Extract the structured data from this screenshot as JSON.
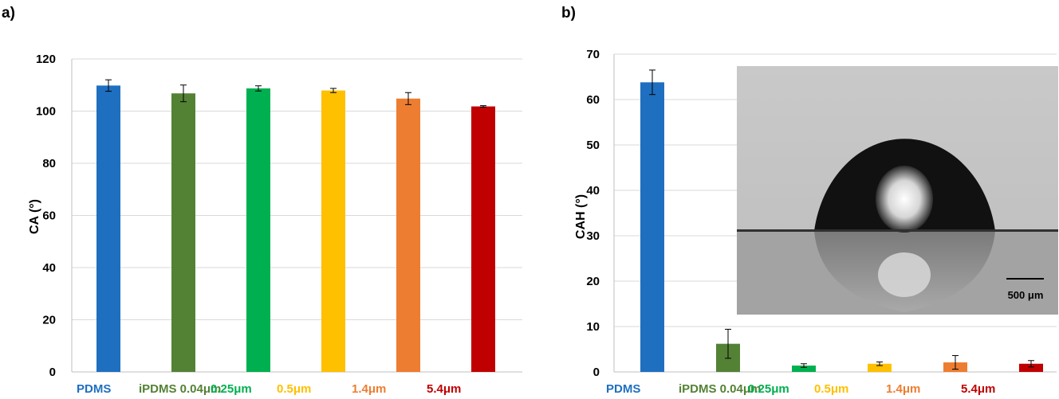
{
  "chart_data": [
    {
      "type": "bar",
      "panel_label": "a)",
      "ylabel": "CA (°)",
      "ylim": [
        0,
        120
      ],
      "yticks": [
        0,
        20,
        40,
        60,
        80,
        100,
        120
      ],
      "grid": true,
      "categories": [
        "PDMS",
        "iPDMS 0.04μm",
        "0.25μm",
        "0.5μm",
        "1.4μm",
        "5.4μm"
      ],
      "colors": [
        "#1f6fc0",
        "#548235",
        "#00b050",
        "#ffc000",
        "#ed7d31",
        "#c00000"
      ],
      "values": [
        109.8,
        106.8,
        108.7,
        107.9,
        104.8,
        101.8
      ],
      "errors": [
        2.2,
        3.2,
        1.0,
        0.8,
        2.3,
        0.3
      ]
    },
    {
      "type": "bar",
      "panel_label": "b)",
      "ylabel": "CAH (°)",
      "ylim": [
        0,
        70
      ],
      "yticks": [
        0,
        10,
        20,
        30,
        40,
        50,
        60,
        70
      ],
      "grid": true,
      "categories": [
        "PDMS",
        "iPDMS 0.04μm",
        "0.25μm",
        "0.5μm",
        "1.4μm",
        "5.4μm"
      ],
      "colors": [
        "#1f6fc0",
        "#548235",
        "#00b050",
        "#ffc000",
        "#ed7d31",
        "#c00000"
      ],
      "values": [
        63.8,
        6.2,
        1.4,
        1.8,
        2.1,
        1.8
      ],
      "errors": [
        2.7,
        3.2,
        0.4,
        0.4,
        1.5,
        0.7
      ],
      "inset": {
        "scale_bar_label": "500 μm"
      }
    }
  ]
}
